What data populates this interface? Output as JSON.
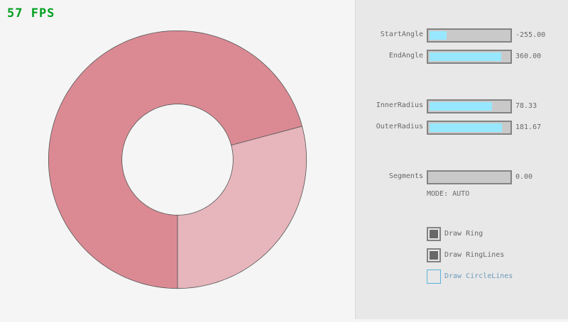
{
  "fps": "57 FPS",
  "ring": {
    "start_angle": -255,
    "end_angle": 360,
    "inner_radius": 78.33,
    "outer_radius": 181.67,
    "overlap_color": "#db8a93",
    "single_color": "#e6b6bc",
    "line_color": "#555555"
  },
  "controls": {
    "sliders": [
      {
        "label": "StartAngle",
        "value": "-255.00",
        "fraction": 0.217
      },
      {
        "label": "EndAngle",
        "value": "360.00",
        "fraction": 0.9
      },
      {
        "label": "InnerRadius",
        "value": "78.33",
        "fraction": 0.783
      },
      {
        "label": "OuterRadius",
        "value": "181.67",
        "fraction": 0.908
      },
      {
        "label": "Segments",
        "value": "0.00",
        "fraction": 0
      }
    ],
    "mode": "MODE: AUTO",
    "checkboxes": [
      {
        "label": "Draw Ring",
        "checked": true
      },
      {
        "label": "Draw RingLines",
        "checked": true
      },
      {
        "label": "Draw CircleLines",
        "checked": false
      }
    ]
  }
}
